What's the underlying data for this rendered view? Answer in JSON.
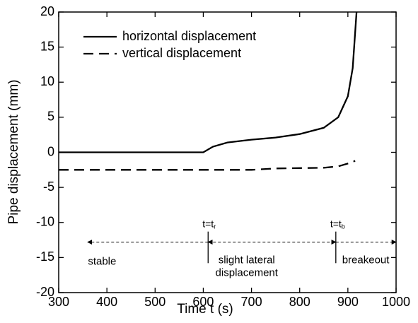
{
  "chart_data": {
    "type": "line",
    "xlabel": "Time t (s)",
    "ylabel": "Pipe displacement (mm)",
    "x": [
      300,
      400,
      500,
      600,
      620,
      650,
      700,
      750,
      800,
      850,
      880,
      900,
      910,
      915,
      918
    ],
    "series": [
      {
        "name": "horizontal displacement",
        "color": "#000000",
        "dash": "solid",
        "values": [
          0,
          0,
          0,
          0,
          0.8,
          1.4,
          1.8,
          2.1,
          2.6,
          3.5,
          5,
          8,
          12,
          17,
          20
        ]
      },
      {
        "name": "vertical displacement",
        "color": "#000000",
        "dash": "dashed",
        "values": [
          -2.5,
          -2.5,
          -2.5,
          -2.5,
          -2.5,
          -2.5,
          -2.5,
          -2.3,
          -2.25,
          -2.2,
          -2.0,
          -1.6,
          -1.4,
          -1.2,
          null
        ]
      }
    ],
    "xlim": [
      300,
      1000
    ],
    "xticks": [
      300,
      400,
      500,
      600,
      700,
      800,
      900,
      1000
    ],
    "ylim": [
      -20,
      20
    ],
    "yticks": [
      -20,
      -15,
      -10,
      -5,
      0,
      5,
      10,
      15,
      20
    ],
    "legend": "upper left",
    "markers": [
      {
        "text": "t=t",
        "sub": "r",
        "x": 610
      },
      {
        "text": "t=t",
        "sub": "b",
        "x": 875
      }
    ],
    "regions": [
      {
        "lines": [
          "stable"
        ]
      },
      {
        "lines": [
          "slight lateral",
          "displacement"
        ]
      },
      {
        "lines": [
          "breakeout"
        ]
      }
    ]
  }
}
